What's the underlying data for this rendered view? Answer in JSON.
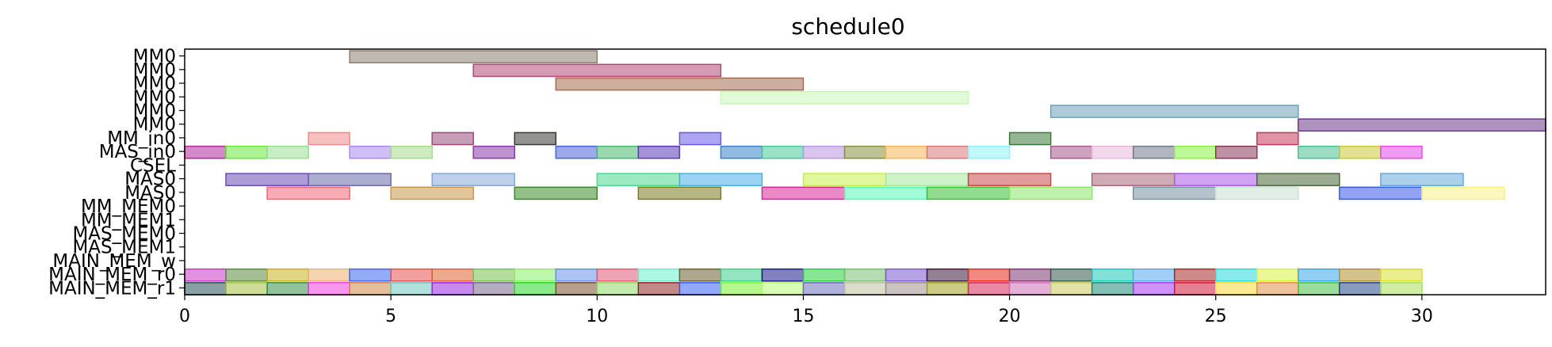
{
  "chart_data": {
    "type": "gantt",
    "title": "schedule0",
    "xlabel": "",
    "ylabel": "",
    "xlim": [
      0,
      33
    ],
    "x_ticks": [
      0,
      5,
      10,
      15,
      20,
      25,
      30
    ],
    "grid": false,
    "rows": [
      "MM0",
      "MM0",
      "MM0",
      "MM0",
      "MM0",
      "MM0",
      "MM_in0",
      "MAS_in0",
      "CSEL",
      "MAS0",
      "MAS0",
      "MM_MEM0",
      "MM_MEM1",
      "MAS_MEM0",
      "MAS_MEM1",
      "MAIN_MEM_w",
      "MAIN_MEM_r0",
      "MAIN_MEM_r1"
    ],
    "tasks": [
      {
        "row": 0,
        "start": 4,
        "end": 10,
        "color": "#8c7f73"
      },
      {
        "row": 1,
        "start": 7,
        "end": 13,
        "color": "#b04a72"
      },
      {
        "row": 2,
        "start": 9,
        "end": 15,
        "color": "#a46c4f"
      },
      {
        "row": 3,
        "start": 13,
        "end": 19,
        "color": "#c8f8b8"
      },
      {
        "row": 4,
        "start": 21,
        "end": 27,
        "color": "#6fa0b8"
      },
      {
        "row": 5,
        "start": 27,
        "end": 33,
        "color": "#6b3a86"
      },
      {
        "row": 6,
        "start": 3,
        "end": 4,
        "color": "#f08a8a"
      },
      {
        "row": 6,
        "start": 6,
        "end": 7,
        "color": "#9a4a78"
      },
      {
        "row": 6,
        "start": 8,
        "end": 9,
        "color": "#3a3a34"
      },
      {
        "row": 6,
        "start": 12,
        "end": 13,
        "color": "#6a5ae8"
      },
      {
        "row": 6,
        "start": 20,
        "end": 21,
        "color": "#3a7a3a"
      },
      {
        "row": 6,
        "start": 26,
        "end": 27,
        "color": "#c43a5a"
      },
      {
        "row": 7,
        "start": 0,
        "end": 1,
        "color": "#b0289a"
      },
      {
        "row": 7,
        "start": 1,
        "end": 2,
        "color": "#6ae83a"
      },
      {
        "row": 7,
        "start": 2,
        "end": 3,
        "color": "#98e090"
      },
      {
        "row": 7,
        "start": 4,
        "end": 5,
        "color": "#a888f0"
      },
      {
        "row": 7,
        "start": 5,
        "end": 6,
        "color": "#a8d888"
      },
      {
        "row": 7,
        "start": 7,
        "end": 8,
        "color": "#8a38a8"
      },
      {
        "row": 7,
        "start": 9,
        "end": 10,
        "color": "#4a62d8"
      },
      {
        "row": 7,
        "start": 10,
        "end": 11,
        "color": "#48b870"
      },
      {
        "row": 7,
        "start": 11,
        "end": 12,
        "color": "#5a38b8"
      },
      {
        "row": 7,
        "start": 13,
        "end": 14,
        "color": "#3a82c8"
      },
      {
        "row": 7,
        "start": 14,
        "end": 15,
        "color": "#48c898"
      },
      {
        "row": 7,
        "start": 15,
        "end": 16,
        "color": "#b898e0"
      },
      {
        "row": 7,
        "start": 16,
        "end": 17,
        "color": "#8a9040"
      },
      {
        "row": 7,
        "start": 17,
        "end": 18,
        "color": "#f8b858"
      },
      {
        "row": 7,
        "start": 18,
        "end": 19,
        "color": "#d87a78"
      },
      {
        "row": 7,
        "start": 19,
        "end": 20,
        "color": "#90f0f8"
      },
      {
        "row": 7,
        "start": 21,
        "end": 22,
        "color": "#a85888"
      },
      {
        "row": 7,
        "start": 22,
        "end": 23,
        "color": "#e8b8d8"
      },
      {
        "row": 7,
        "start": 23,
        "end": 24,
        "color": "#707888"
      },
      {
        "row": 7,
        "start": 24,
        "end": 25,
        "color": "#88f040"
      },
      {
        "row": 7,
        "start": 25,
        "end": 26,
        "color": "#883858"
      },
      {
        "row": 7,
        "start": 27,
        "end": 28,
        "color": "#48c090"
      },
      {
        "row": 7,
        "start": 28,
        "end": 29,
        "color": "#c8c838"
      },
      {
        "row": 7,
        "start": 29,
        "end": 30,
        "color": "#e848e8"
      },
      {
        "row": 9,
        "start": 1,
        "end": 3,
        "color": "#6a4ab8"
      },
      {
        "row": 9,
        "start": 3,
        "end": 5,
        "color": "#6a6aa8"
      },
      {
        "row": 9,
        "start": 6,
        "end": 8,
        "color": "#88a8d8"
      },
      {
        "row": 9,
        "start": 10,
        "end": 12,
        "color": "#48d890"
      },
      {
        "row": 9,
        "start": 12,
        "end": 14,
        "color": "#48b0e8"
      },
      {
        "row": 9,
        "start": 15,
        "end": 17,
        "color": "#c8f048"
      },
      {
        "row": 9,
        "start": 17,
        "end": 19,
        "color": "#a8e8a0"
      },
      {
        "row": 9,
        "start": 19,
        "end": 21,
        "color": "#c84848"
      },
      {
        "row": 9,
        "start": 22,
        "end": 24,
        "color": "#a86878"
      },
      {
        "row": 9,
        "start": 24,
        "end": 26,
        "color": "#a858e8"
      },
      {
        "row": 9,
        "start": 26,
        "end": 28,
        "color": "#486838"
      },
      {
        "row": 9,
        "start": 29,
        "end": 31,
        "color": "#68a8d8"
      },
      {
        "row": 10,
        "start": 2,
        "end": 4,
        "color": "#f06878"
      },
      {
        "row": 10,
        "start": 5,
        "end": 7,
        "color": "#c89848"
      },
      {
        "row": 10,
        "start": 8,
        "end": 10,
        "color": "#3a8a28"
      },
      {
        "row": 10,
        "start": 11,
        "end": 13,
        "color": "#7a7a20"
      },
      {
        "row": 10,
        "start": 14,
        "end": 16,
        "color": "#d82898"
      },
      {
        "row": 10,
        "start": 16,
        "end": 18,
        "color": "#58f8b8"
      },
      {
        "row": 10,
        "start": 18,
        "end": 20,
        "color": "#38c038"
      },
      {
        "row": 10,
        "start": 20,
        "end": 22,
        "color": "#88e868"
      },
      {
        "row": 10,
        "start": 23,
        "end": 25,
        "color": "#7890a0"
      },
      {
        "row": 10,
        "start": 25,
        "end": 27,
        "color": "#c8e0d0"
      },
      {
        "row": 10,
        "start": 28,
        "end": 30,
        "color": "#3858e8"
      },
      {
        "row": 10,
        "start": 30,
        "end": 32,
        "color": "#f8f088"
      },
      {
        "row": 16,
        "start": 0,
        "end": 1,
        "color": "#c838c8"
      },
      {
        "row": 16,
        "start": 1,
        "end": 2,
        "color": "#5a8a40"
      },
      {
        "row": 16,
        "start": 2,
        "end": 3,
        "color": "#c8b020"
      },
      {
        "row": 16,
        "start": 3,
        "end": 4,
        "color": "#f0b070"
      },
      {
        "row": 16,
        "start": 4,
        "end": 5,
        "color": "#3868f0"
      },
      {
        "row": 16,
        "start": 5,
        "end": 6,
        "color": "#e85050"
      },
      {
        "row": 16,
        "start": 6,
        "end": 7,
        "color": "#e06030"
      },
      {
        "row": 16,
        "start": 7,
        "end": 8,
        "color": "#78c050"
      },
      {
        "row": 16,
        "start": 8,
        "end": 9,
        "color": "#88f068"
      },
      {
        "row": 16,
        "start": 9,
        "end": 10,
        "color": "#6890e8"
      },
      {
        "row": 16,
        "start": 10,
        "end": 11,
        "color": "#e05878"
      },
      {
        "row": 16,
        "start": 11,
        "end": 12,
        "color": "#68f0c8"
      },
      {
        "row": 16,
        "start": 12,
        "end": 13,
        "color": "#6a6030"
      },
      {
        "row": 16,
        "start": 13,
        "end": 14,
        "color": "#38d088"
      },
      {
        "row": 16,
        "start": 14,
        "end": 15,
        "color": "#1a1a90"
      },
      {
        "row": 16,
        "start": 15,
        "end": 16,
        "color": "#28d040"
      },
      {
        "row": 16,
        "start": 16,
        "end": 17,
        "color": "#78c070"
      },
      {
        "row": 16,
        "start": 17,
        "end": 18,
        "color": "#7a58d0"
      },
      {
        "row": 16,
        "start": 18,
        "end": 19,
        "color": "#3a1838"
      },
      {
        "row": 16,
        "start": 19,
        "end": 20,
        "color": "#e82818"
      },
      {
        "row": 16,
        "start": 20,
        "end": 21,
        "color": "#7a3870"
      },
      {
        "row": 16,
        "start": 21,
        "end": 22,
        "color": "#305848"
      },
      {
        "row": 16,
        "start": 22,
        "end": 23,
        "color": "#18c8b8"
      },
      {
        "row": 16,
        "start": 23,
        "end": 24,
        "color": "#58a8f0"
      },
      {
        "row": 16,
        "start": 24,
        "end": 25,
        "color": "#a82828"
      },
      {
        "row": 16,
        "start": 25,
        "end": 26,
        "color": "#28d8e0"
      },
      {
        "row": 16,
        "start": 26,
        "end": 27,
        "color": "#d8f040"
      },
      {
        "row": 16,
        "start": 27,
        "end": 28,
        "color": "#38a8e8"
      },
      {
        "row": 16,
        "start": 28,
        "end": 29,
        "color": "#b09030"
      },
      {
        "row": 16,
        "start": 29,
        "end": 30,
        "color": "#d8e030"
      },
      {
        "row": 17,
        "start": 0,
        "end": 1,
        "color": "#28505a"
      },
      {
        "row": 17,
        "start": 1,
        "end": 2,
        "color": "#a8c040"
      },
      {
        "row": 17,
        "start": 2,
        "end": 3,
        "color": "#38904a"
      },
      {
        "row": 17,
        "start": 3,
        "end": 4,
        "color": "#f040e0"
      },
      {
        "row": 17,
        "start": 4,
        "end": 5,
        "color": "#d08848"
      },
      {
        "row": 17,
        "start": 5,
        "end": 6,
        "color": "#70c8c0"
      },
      {
        "row": 17,
        "start": 6,
        "end": 7,
        "color": "#9a28e0"
      },
      {
        "row": 17,
        "start": 7,
        "end": 8,
        "color": "#7a6890"
      },
      {
        "row": 17,
        "start": 8,
        "end": 9,
        "color": "#28d828"
      },
      {
        "row": 17,
        "start": 9,
        "end": 10,
        "color": "#7a5030"
      },
      {
        "row": 17,
        "start": 10,
        "end": 11,
        "color": "#90d868"
      },
      {
        "row": 17,
        "start": 11,
        "end": 12,
        "color": "#902828"
      },
      {
        "row": 17,
        "start": 12,
        "end": 13,
        "color": "#3860f8"
      },
      {
        "row": 17,
        "start": 13,
        "end": 14,
        "color": "#78f030"
      },
      {
        "row": 17,
        "start": 14,
        "end": 15,
        "color": "#b8f878"
      },
      {
        "row": 17,
        "start": 15,
        "end": 16,
        "color": "#7070c0"
      },
      {
        "row": 17,
        "start": 16,
        "end": 17,
        "color": "#c0c0a0"
      },
      {
        "row": 17,
        "start": 17,
        "end": 18,
        "color": "#a09090"
      },
      {
        "row": 17,
        "start": 18,
        "end": 19,
        "color": "#a0a020"
      },
      {
        "row": 17,
        "start": 19,
        "end": 20,
        "color": "#d82858"
      },
      {
        "row": 17,
        "start": 20,
        "end": 21,
        "color": "#d070b8"
      },
      {
        "row": 17,
        "start": 21,
        "end": 22,
        "color": "#c8c860"
      },
      {
        "row": 17,
        "start": 22,
        "end": 23,
        "color": "#208878"
      },
      {
        "row": 17,
        "start": 23,
        "end": 24,
        "color": "#a838f0"
      },
      {
        "row": 17,
        "start": 24,
        "end": 25,
        "color": "#d01838"
      },
      {
        "row": 17,
        "start": 25,
        "end": 26,
        "color": "#f8d838"
      },
      {
        "row": 17,
        "start": 26,
        "end": 27,
        "color": "#e09048"
      },
      {
        "row": 17,
        "start": 27,
        "end": 28,
        "color": "#48c048"
      },
      {
        "row": 17,
        "start": 28,
        "end": 29,
        "color": "#284888"
      },
      {
        "row": 17,
        "start": 29,
        "end": 30,
        "color": "#a8e058"
      }
    ]
  }
}
